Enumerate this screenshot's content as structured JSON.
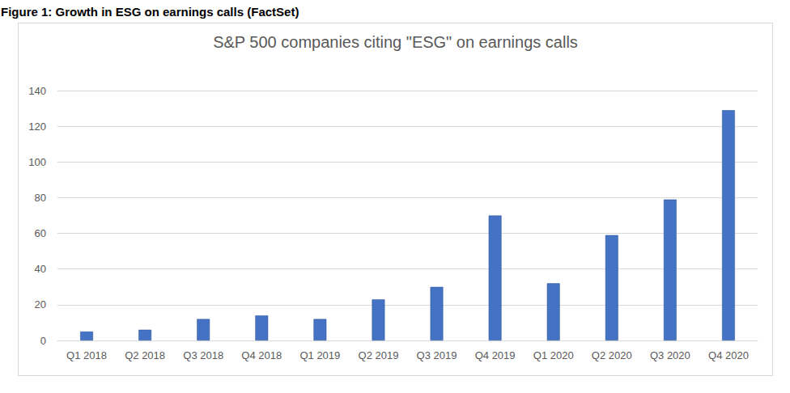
{
  "chart_data": {
    "type": "bar",
    "title": "Figure 1: Growth in ESG on earnings calls (FactSet)",
    "subtitle": "S&P 500 companies citing \"ESG\" on earnings calls",
    "categories": [
      "Q1 2018",
      "Q2 2018",
      "Q3 2018",
      "Q4 2018",
      "Q1 2019",
      "Q2 2019",
      "Q3 2019",
      "Q4 2019",
      "Q1 2020",
      "Q2 2020",
      "Q3 2020",
      "Q4 2020"
    ],
    "values": [
      5,
      6,
      12,
      14,
      12,
      23,
      30,
      70,
      32,
      59,
      79,
      129
    ],
    "color": "#4472c4",
    "ylim": [
      0,
      140
    ],
    "yticks": [
      0,
      20,
      40,
      60,
      80,
      100,
      120,
      140
    ],
    "grid": true
  }
}
